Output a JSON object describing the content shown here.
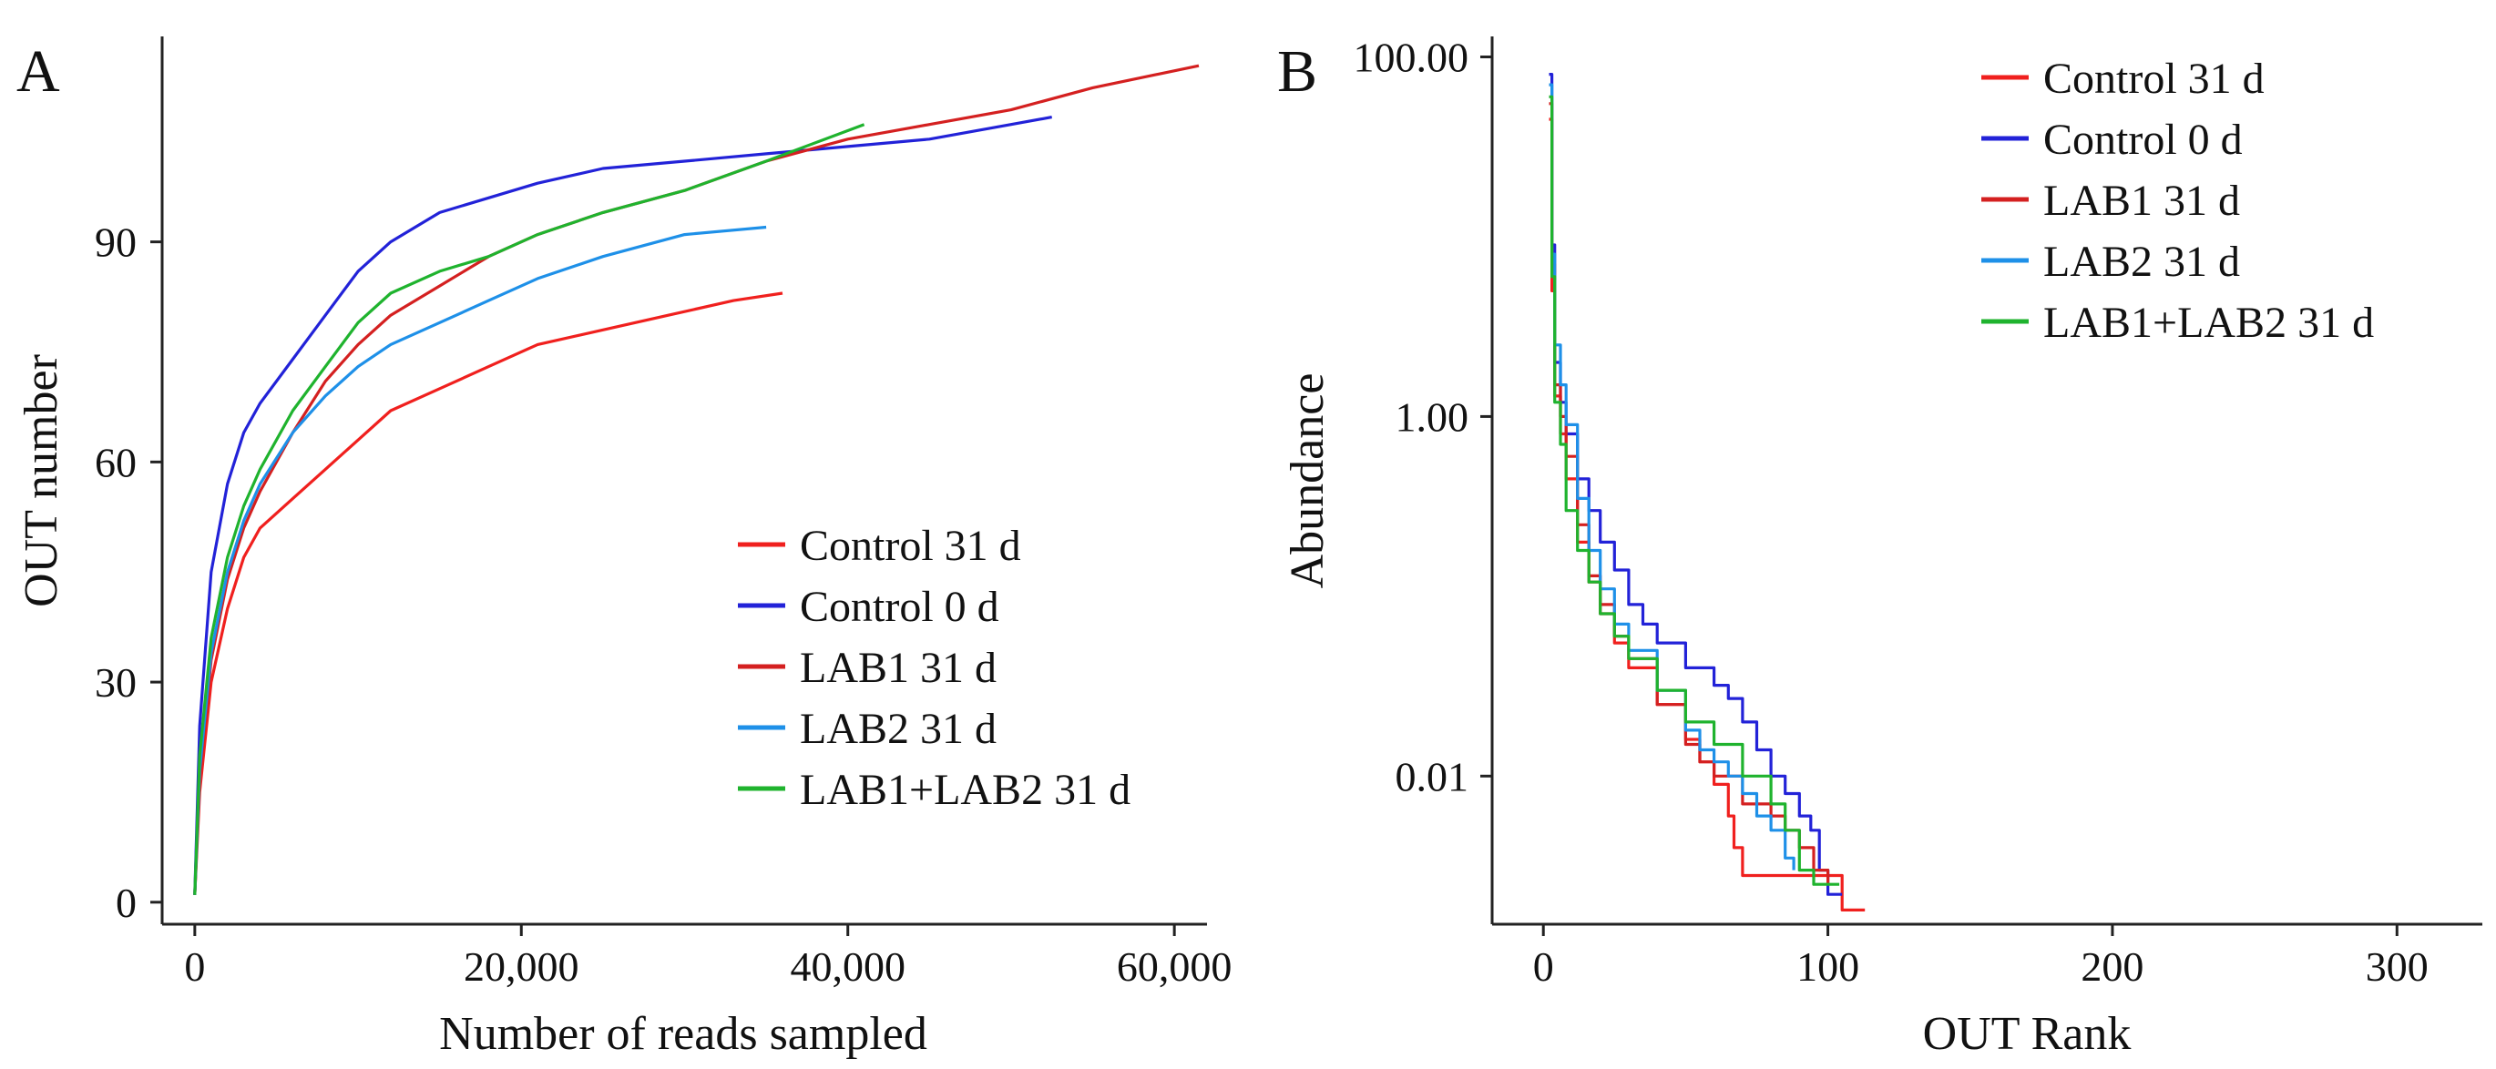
{
  "panels": [
    {
      "panel_label": "A",
      "xlabel": "Number of reads sampled",
      "ylabel": "OUT number",
      "x_ticks": [
        0,
        20000,
        40000,
        60000
      ],
      "x_tick_labels": [
        "0",
        "20,000",
        "40,000",
        "60,000"
      ],
      "y_ticks": [
        0,
        30,
        60,
        90
      ],
      "y_tick_labels": [
        "0",
        "30",
        "60",
        "90"
      ],
      "legend_position": "bottom-right"
    },
    {
      "panel_label": "B",
      "xlabel": "OUT Rank",
      "ylabel": "Abundance",
      "x_ticks": [
        0,
        100,
        200,
        300
      ],
      "x_tick_labels": [
        "0",
        "100",
        "200",
        "300"
      ],
      "y_ticks": [
        0.01,
        1,
        100
      ],
      "y_tick_labels": [
        "0.01",
        "1.00",
        "100.00"
      ],
      "legend_position": "top-right"
    }
  ],
  "chart_data": [
    {
      "type": "line",
      "xlabel": "Number of reads sampled",
      "ylabel": "OUT number",
      "xlim": [
        -2000,
        62000
      ],
      "ylim": [
        -3,
        118
      ],
      "grid": false,
      "legend": "bottom-right",
      "series": [
        {
          "name": "Control 31 d",
          "color": "#f0201e",
          "x": [
            0,
            300,
            1000,
            2000,
            3000,
            4000,
            6000,
            8000,
            10000,
            12000,
            15000,
            18000,
            21000,
            25000,
            29000,
            33000,
            36000
          ],
          "y": [
            1,
            15,
            30,
            40,
            47,
            51,
            55,
            59,
            63,
            67,
            70,
            73,
            76,
            78,
            80,
            82,
            83
          ]
        },
        {
          "name": "Control 0 d",
          "color": "#2222d8",
          "x": [
            0,
            300,
            1000,
            2000,
            3000,
            4000,
            6000,
            8000,
            10000,
            12000,
            15000,
            18000,
            21000,
            25000,
            30000,
            35000,
            40000,
            45000,
            50000,
            52500
          ],
          "y": [
            1,
            24,
            45,
            57,
            64,
            68,
            74,
            80,
            86,
            90,
            94,
            96,
            98,
            100,
            101,
            102,
            103,
            104,
            106,
            107
          ]
        },
        {
          "name": "LAB1 31 d",
          "color": "#d42020",
          "x": [
            0,
            300,
            1000,
            2000,
            3000,
            4000,
            6000,
            8000,
            10000,
            12000,
            15000,
            18000,
            21000,
            25000,
            30000,
            35000,
            40000,
            45000,
            50000,
            55000,
            61500
          ],
          "y": [
            1,
            17,
            33,
            44,
            51,
            56,
            64,
            71,
            76,
            80,
            84,
            88,
            91,
            94,
            97,
            101,
            104,
            106,
            108,
            111,
            114
          ]
        },
        {
          "name": "LAB2 31 d",
          "color": "#1e90e8",
          "x": [
            0,
            300,
            1000,
            2000,
            3000,
            4000,
            6000,
            8000,
            10000,
            12000,
            15000,
            18000,
            21000,
            25000,
            30000,
            35000
          ],
          "y": [
            1,
            18,
            34,
            45,
            52,
            57,
            64,
            69,
            73,
            76,
            79,
            82,
            85,
            88,
            91,
            92
          ]
        },
        {
          "name": "LAB1+LAB2 31 d",
          "color": "#1fb32e",
          "x": [
            0,
            300,
            1000,
            2000,
            3000,
            4000,
            6000,
            8000,
            10000,
            12000,
            15000,
            18000,
            21000,
            25000,
            30000,
            35000,
            41000
          ],
          "y": [
            1,
            20,
            36,
            47,
            54,
            59,
            67,
            73,
            79,
            83,
            86,
            88,
            91,
            94,
            97,
            101,
            106
          ]
        }
      ]
    },
    {
      "type": "line",
      "xlabel": "OUT Rank",
      "ylabel": "Abundance",
      "xlim": [
        -18,
        330
      ],
      "ylim": [
        0.0015,
        130
      ],
      "yscale": "log",
      "grid": false,
      "legend": "top-right",
      "series": [
        {
          "name": "Control 31 d",
          "color": "#f0201e",
          "x": [
            2,
            3,
            4,
            6,
            8,
            12,
            16,
            20,
            25,
            30,
            40,
            50,
            55,
            60,
            65,
            67,
            70,
            76,
            80,
            85,
            90,
            100,
            105,
            113
          ],
          "y": [
            45,
            5,
            1.3,
            0.8,
            0.45,
            0.2,
            0.12,
            0.08,
            0.055,
            0.04,
            0.025,
            0.016,
            0.012,
            0.009,
            0.006,
            0.004,
            0.0028,
            0.0028,
            0.0028,
            0.0028,
            0.0028,
            0.0028,
            0.0018,
            0.0018
          ]
        },
        {
          "name": "Control 0 d",
          "color": "#2222d8",
          "x": [
            2,
            3,
            4,
            6,
            8,
            12,
            16,
            20,
            25,
            30,
            35,
            40,
            50,
            60,
            65,
            70,
            75,
            80,
            85,
            90,
            94,
            97,
            100,
            105
          ],
          "y": [
            80,
            9,
            2,
            1.2,
            0.8,
            0.45,
            0.3,
            0.2,
            0.14,
            0.09,
            0.07,
            0.055,
            0.04,
            0.032,
            0.027,
            0.02,
            0.014,
            0.01,
            0.008,
            0.006,
            0.005,
            0.003,
            0.0022,
            0.0022
          ]
        },
        {
          "name": "LAB1 31 d",
          "color": "#d42020",
          "x": [
            2,
            3,
            4,
            6,
            8,
            12,
            16,
            20,
            25,
            30,
            40,
            50,
            55,
            60,
            70,
            80,
            85,
            90,
            95,
            100
          ],
          "y": [
            55,
            7,
            1.5,
            1,
            0.6,
            0.25,
            0.13,
            0.09,
            0.06,
            0.045,
            0.025,
            0.015,
            0.012,
            0.01,
            0.007,
            0.006,
            0.005,
            0.004,
            0.003,
            0.0025
          ]
        },
        {
          "name": "LAB2 31 d",
          "color": "#1e90e8",
          "x": [
            2,
            3,
            4,
            6,
            8,
            12,
            16,
            20,
            25,
            30,
            40,
            50,
            55,
            60,
            65,
            70,
            75,
            80,
            85,
            88
          ],
          "y": [
            70,
            8,
            2.5,
            1.5,
            0.9,
            0.35,
            0.18,
            0.11,
            0.07,
            0.05,
            0.03,
            0.018,
            0.014,
            0.012,
            0.01,
            0.008,
            0.006,
            0.005,
            0.0035,
            0.003
          ]
        },
        {
          "name": "LAB1+LAB2 31 d",
          "color": "#1fb32e",
          "x": [
            2,
            3,
            4,
            6,
            8,
            12,
            16,
            20,
            25,
            30,
            40,
            50,
            60,
            70,
            80,
            85,
            90,
            95,
            100,
            104
          ],
          "y": [
            60,
            6,
            1.2,
            0.7,
            0.3,
            0.18,
            0.12,
            0.08,
            0.06,
            0.045,
            0.03,
            0.02,
            0.015,
            0.01,
            0.007,
            0.005,
            0.003,
            0.0025,
            0.0025,
            0.0025
          ]
        }
      ]
    }
  ]
}
